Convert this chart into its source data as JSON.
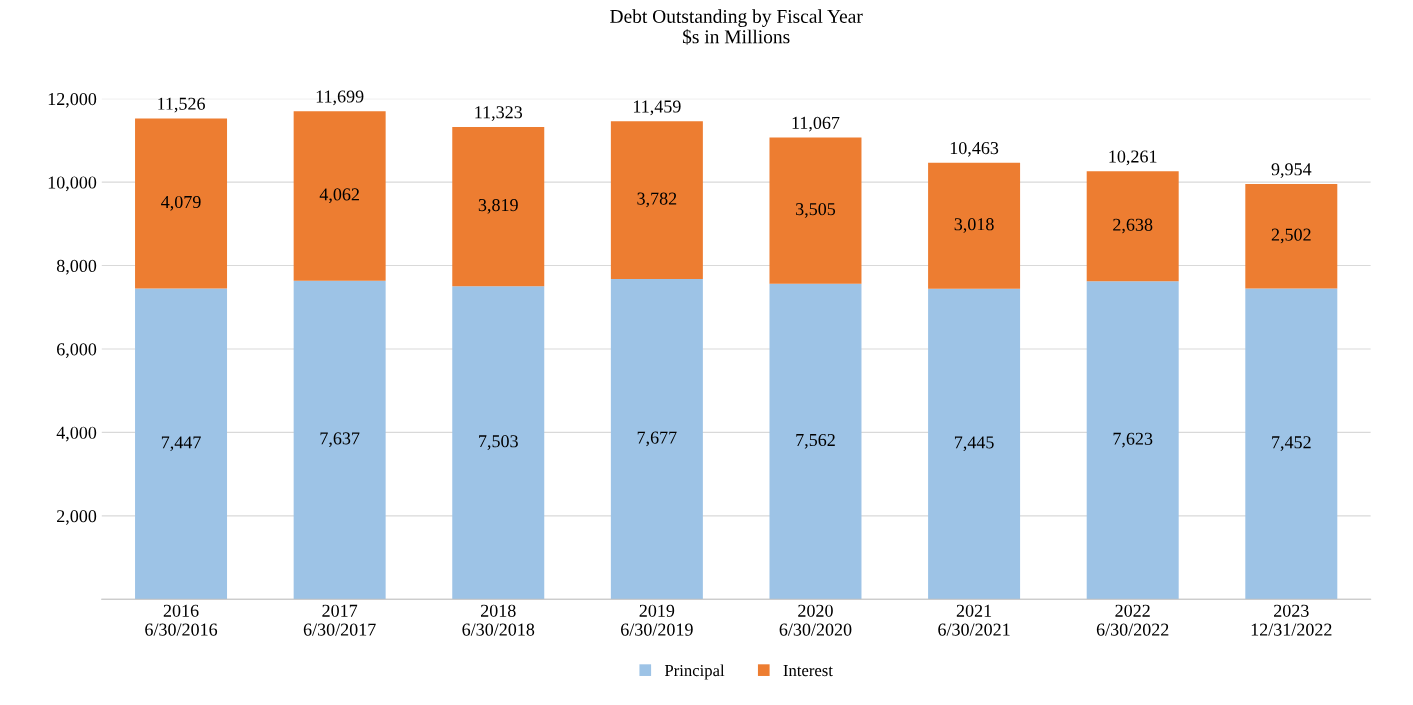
{
  "chart_data": {
    "type": "bar",
    "title": "Debt Outstanding by Fiscal Year\n$s in Millions",
    "stacked": true,
    "categories": [
      "2016\n6/30/2016",
      "2017\n6/30/2017",
      "2018\n6/30/2018",
      "2019\n6/30/2019",
      "2020\n6/30/2020",
      "2021\n6/30/2021",
      "2022\n6/30/2022",
      "2023\n12/31/2022"
    ],
    "series": [
      {
        "name": "Principal",
        "color": "#9dc3e6",
        "values": [
          7447,
          7637,
          7503,
          7677,
          7562,
          7445,
          7623,
          7452
        ],
        "value_labels": [
          "7,447",
          "7,637",
          "7,503",
          "7,677",
          "7,562",
          "7,445",
          "7,623",
          "7,452"
        ]
      },
      {
        "name": "Interest",
        "color": "#ed7d31",
        "values": [
          4079,
          4062,
          3819,
          3782,
          3505,
          3018,
          2638,
          2502
        ],
        "value_labels": [
          "4,079",
          "4,062",
          "3,819",
          "3,782",
          "3,505",
          "3,018",
          "2,638",
          "2,502"
        ]
      }
    ],
    "totals": [
      "11,526",
      "11,699",
      "11,323",
      "11,459",
      "11,067",
      "10,463",
      "10,261",
      "9,954"
    ],
    "ylim": [
      0,
      12000
    ],
    "yticks": [
      {
        "value": 0,
        "label": null
      },
      {
        "value": 2000,
        "label": "2,000"
      },
      {
        "value": 4000,
        "label": "4,000"
      },
      {
        "value": 6000,
        "label": "6,000"
      },
      {
        "value": 8000,
        "label": "8,000"
      },
      {
        "value": 10000,
        "label": "10,000"
      },
      {
        "value": 12000,
        "label": "12,000"
      }
    ],
    "grid": "y",
    "legend": "bottom"
  }
}
